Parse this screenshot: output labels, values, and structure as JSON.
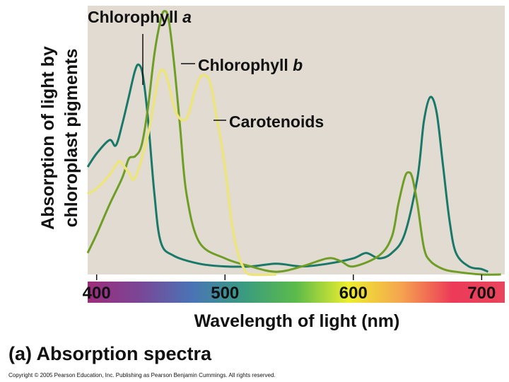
{
  "chart_data": {
    "type": "line",
    "title": "(a) Absorption spectra",
    "xlabel": "Wavelength of light (nm)",
    "ylabel_lines": [
      "Absorption of light by",
      "chloroplast pigments"
    ],
    "xlim": [
      393,
      718
    ],
    "ylim": [
      0,
      1
    ],
    "xticks": [
      400,
      500,
      600,
      700
    ],
    "series": [
      {
        "name": "Chlorophyll a",
        "name_main": "Chlorophyll ",
        "name_italic": "a",
        "color": "#1a7868",
        "x": [
          393,
          400,
          410,
          415,
          420,
          425,
          430,
          433,
          436,
          440,
          445,
          450,
          460,
          480,
          500,
          520,
          540,
          560,
          580,
          600,
          610,
          620,
          630,
          640,
          650,
          655,
          660,
          665,
          670,
          675,
          680,
          690,
          700,
          705
        ],
        "y": [
          0.4,
          0.45,
          0.5,
          0.48,
          0.56,
          0.66,
          0.76,
          0.78,
          0.74,
          0.58,
          0.3,
          0.12,
          0.07,
          0.04,
          0.03,
          0.03,
          0.04,
          0.03,
          0.04,
          0.06,
          0.08,
          0.06,
          0.08,
          0.15,
          0.36,
          0.57,
          0.66,
          0.6,
          0.4,
          0.2,
          0.08,
          0.03,
          0.02,
          0.01
        ]
      },
      {
        "name": "Chlorophyll b",
        "name_main": "Chlorophyll ",
        "name_italic": "b",
        "color": "#6e9e26",
        "x": [
          393,
          400,
          410,
          420,
          425,
          430,
          435,
          440,
          445,
          450,
          453,
          456,
          460,
          465,
          470,
          480,
          500,
          520,
          540,
          560,
          580,
          590,
          600,
          620,
          630,
          635,
          640,
          643,
          646,
          650,
          655,
          660,
          670,
          680,
          700,
          715
        ],
        "y": [
          0.08,
          0.15,
          0.26,
          0.36,
          0.43,
          0.44,
          0.48,
          0.62,
          0.82,
          0.95,
          0.98,
          0.95,
          0.8,
          0.55,
          0.3,
          0.12,
          0.06,
          0.03,
          0.01,
          0.03,
          0.06,
          0.05,
          0.03,
          0.07,
          0.14,
          0.26,
          0.36,
          0.38,
          0.36,
          0.26,
          0.1,
          0.05,
          0.02,
          0.01,
          0.0,
          0.0
        ]
      },
      {
        "name": "Carotenoids",
        "color": "#ece47c",
        "x": [
          393,
          400,
          410,
          417,
          420,
          425,
          430,
          440,
          448,
          452,
          456,
          462,
          470,
          477,
          482,
          488,
          493,
          500,
          505,
          510,
          515,
          520,
          540
        ],
        "y": [
          0.3,
          0.32,
          0.37,
          0.42,
          0.41,
          0.38,
          0.36,
          0.52,
          0.73,
          0.76,
          0.71,
          0.6,
          0.58,
          0.69,
          0.74,
          0.72,
          0.6,
          0.4,
          0.2,
          0.08,
          0.02,
          0.0,
          0.0
        ]
      }
    ]
  },
  "copyright": "Copyright © 2005 Pearson Education, Inc. Publishing as Pearson Benjamin Cummings. All rights reserved.",
  "colors": {
    "plot_background": "#e2dbd2",
    "spectrum_stops": [
      "#9c2d7c",
      "#7a4696",
      "#4a74b6",
      "#3a9b80",
      "#5cbb4a",
      "#ecee2e",
      "#f5a550",
      "#ec3a58",
      "#e8455c"
    ]
  }
}
